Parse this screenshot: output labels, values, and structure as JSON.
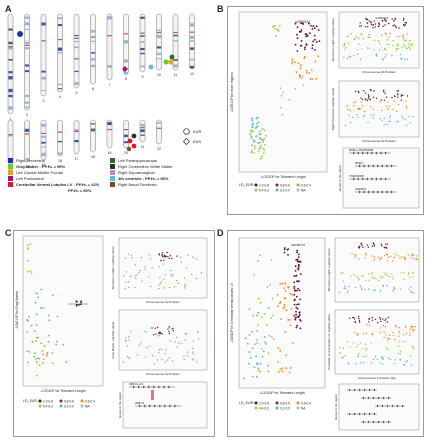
{
  "panels": {
    "a": "A",
    "b": "B",
    "c": "C",
    "d": "D"
  },
  "panelA": {
    "row1_labels": [
      "1",
      "2",
      "3",
      "4",
      "5",
      "6",
      "7",
      "8",
      "9",
      "10",
      "11",
      "12"
    ],
    "row2_labels": [
      "13",
      "14",
      "15",
      "16",
      "17",
      "18",
      "19",
      "20",
      "21",
      "22"
    ],
    "shape_legend": [
      {
        "shape": "circle",
        "label": "EUR"
      },
      {
        "shape": "diamond",
        "label": "EAS"
      }
    ],
    "legend_left": [
      {
        "color": "#1e2fb0",
        "text": "Right Precentral"
      },
      {
        "color": "#6ad12b",
        "text": "Gray Matter - PP.H₄ = 99%"
      },
      {
        "color": "#e8a025",
        "text": "Left Caudal Middle Frontal"
      },
      {
        "color": "#a8106e",
        "text": "Left Postcentral"
      },
      {
        "color": "#e8102a",
        "text": "Cerebellar Vermal Lobules.I-V - PP.H₄ = 42%"
      }
    ],
    "legend_left_extra": "PP.H₄ = 50%",
    "legend_right": [
      {
        "color": "#1f6e2c",
        "text": "Left Parahippocampal"
      },
      {
        "color": "#2e2e2e",
        "text": "Right Cerebellum White Matter"
      },
      {
        "color": "#b98bd6",
        "text": "Right Supramarginal"
      },
      {
        "color": "#5fbad8",
        "text": "4th ventricle - PP.H₄ = 96%"
      },
      {
        "color": "#7a4a2a",
        "text": "Right Basal Forebrain"
      }
    ]
  },
  "panelB": {
    "main_ylabel": "-LOG10P for brain regions",
    "main_xlabel": "-LOG10P for Telomere Length",
    "snp_label": "rs7890124",
    "top_ylabel": "Telomere Length -log10(p-value)",
    "top_xlabel": "Chromosome 20 Position",
    "top_snp": "rs7890124",
    "mid_ylabel": "Right Precentral -log10(p-value)",
    "mid_xlabel": "Chromosome 20 Position",
    "gene_ylabel": "Genes in the region",
    "genes": [
      "RTEL1-TNFRSF6B",
      "RTEL1",
      "TNFRSF6B",
      "ARFRP1"
    ],
    "ld_title": "LD_EUR:",
    "ld_items": [
      "1.0-0.8",
      "0.8-0.6",
      "0.6-0.4",
      "0.4-0.2",
      "0.2-0.0",
      "NA"
    ]
  },
  "panelC": {
    "main_ylabel": "-LOG10P for Gray Matter",
    "main_xlabel": "-LOG10P for Telomere Length",
    "top_ylabel": "Telomere Length -log10(p-value)",
    "top_xlabel": "Chromosome 10 Position",
    "mid_ylabel": "Gray Matter -log10(p-value)",
    "mid_xlabel": "Chromosome 10 Position",
    "gene_ylabel": "Genes in the region",
    "genes": [
      "OBFC1-AS",
      "OBFC1"
    ],
    "ld_title": "LD_EAS:",
    "ld_items": [
      "1.0-0.8",
      "0.8-0.6",
      "0.6-0.4",
      "0.4-0.2",
      "0.2-0.0",
      "NA"
    ]
  },
  "panelD": {
    "main_ylabel": "-LOG10P for Cerebellar vermal lobules I-V",
    "main_xlabel": "-LOG10P for Telomere Length",
    "snp_label": "rs8105767",
    "top_ylabel": "Telomere Length -log10(p-value)",
    "mid_ylabel": "Cerebellar vermal lobules I-V -log10(p-value)",
    "mid_xlabel": "Chromosome 1 Position (bp)",
    "gene_ylabel": "Genes in the region",
    "ld_title": "LD_EUR:",
    "ld_items": [
      "1.0-0.8",
      "0.8-0.6",
      "0.6-0.4",
      "0.4-0.2",
      "0.2-0.0",
      "NA"
    ]
  },
  "ld_colors": [
    "#5b0e2d",
    "#8a1d4a",
    "#f08a19",
    "#9bcf3a",
    "#58b7c9",
    "#b5b5b5"
  ]
}
